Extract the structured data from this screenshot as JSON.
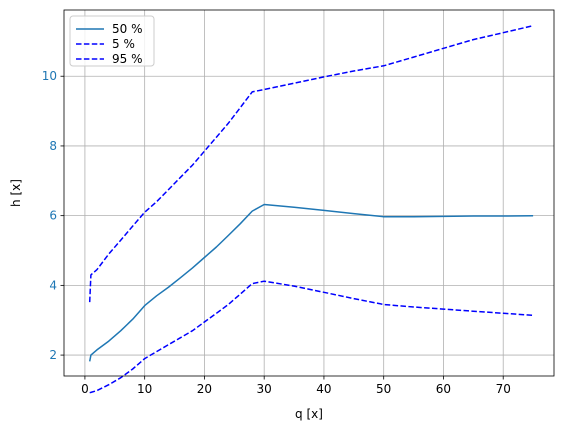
{
  "chart_data": {
    "type": "line",
    "title": "",
    "xlabel": "q [x]",
    "ylabel": "h [x]",
    "xlim": [
      -3.5,
      78.5
    ],
    "ylim": [
      1.4,
      11.9
    ],
    "xticks": [
      0,
      10,
      20,
      30,
      40,
      50,
      60,
      70
    ],
    "yticks": [
      2,
      4,
      6,
      8,
      10
    ],
    "xtick_color": "#000000",
    "ytick_color": "#1f77b4",
    "grid": true,
    "legend_position": "top-left",
    "series": [
      {
        "name": "50 %",
        "color": "#1f77b4",
        "style": "solid",
        "x": [
          0.8,
          1,
          2,
          4,
          6,
          8,
          10,
          12,
          14,
          16,
          18,
          20,
          22,
          24,
          26,
          28,
          30,
          35,
          40,
          45,
          50,
          55,
          60,
          65,
          70,
          75
        ],
        "y": [
          1.82,
          2.0,
          2.15,
          2.4,
          2.7,
          3.03,
          3.42,
          3.7,
          3.95,
          4.22,
          4.5,
          4.8,
          5.1,
          5.43,
          5.77,
          6.13,
          6.32,
          6.24,
          6.15,
          6.06,
          5.97,
          5.97,
          5.98,
          5.99,
          5.99,
          6.0
        ]
      },
      {
        "name": "5 %",
        "color": "#0000ff",
        "style": "dashed",
        "x": [
          0.8,
          1,
          2,
          4,
          6,
          8,
          10,
          12,
          14,
          16,
          18,
          20,
          22,
          24,
          26,
          28,
          30,
          35,
          40,
          45,
          50,
          55,
          60,
          65,
          70,
          75
        ],
        "y": [
          3.52,
          4.3,
          4.45,
          4.9,
          5.3,
          5.7,
          6.1,
          6.4,
          6.75,
          7.1,
          7.45,
          7.85,
          8.25,
          8.65,
          9.1,
          9.55,
          9.62,
          9.8,
          9.98,
          10.15,
          10.3,
          10.55,
          10.8,
          11.05,
          11.25,
          11.45
        ]
      },
      {
        "name": "95 %",
        "color": "#0000ff",
        "style": "dashed",
        "x": [
          0.8,
          1,
          2,
          4,
          6,
          8,
          10,
          12,
          14,
          16,
          18,
          20,
          22,
          24,
          26,
          28,
          30,
          35,
          40,
          45,
          50,
          55,
          60,
          65,
          70,
          75
        ],
        "y": [
          0.92,
          0.93,
          0.98,
          1.15,
          1.35,
          1.6,
          1.9,
          2.1,
          2.3,
          2.5,
          2.7,
          2.95,
          3.2,
          3.45,
          3.75,
          4.05,
          4.12,
          3.98,
          3.8,
          3.62,
          3.45,
          3.38,
          3.32,
          3.26,
          3.2,
          3.14
        ]
      }
    ]
  }
}
